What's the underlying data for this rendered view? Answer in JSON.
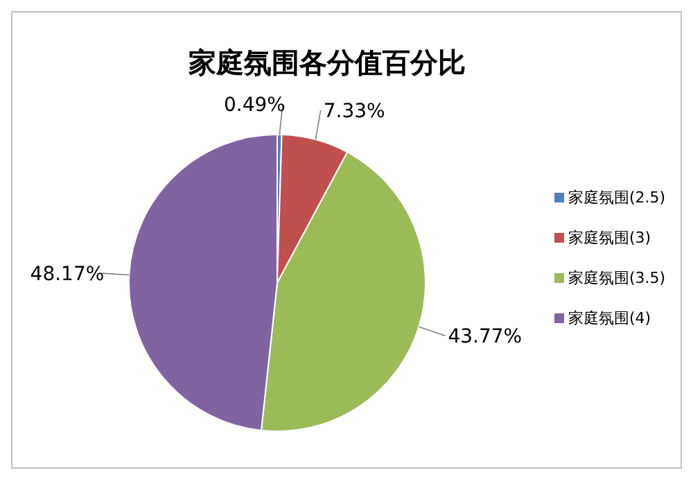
{
  "chart_data": {
    "type": "pie",
    "title": "家庭氛围各分值百分比",
    "categories": [
      "家庭氛围(2.5)",
      "家庭氛围(3)",
      "家庭氛围(3.5)",
      "家庭氛围(4)"
    ],
    "values": [
      0.49,
      7.33,
      43.77,
      48.17
    ],
    "colors": [
      "#4f81bd",
      "#c0504d",
      "#9bbb59",
      "#8064a2"
    ],
    "value_labels": [
      "0.49%",
      "7.33%",
      "43.77%",
      "48.17%"
    ],
    "legend": "right"
  }
}
